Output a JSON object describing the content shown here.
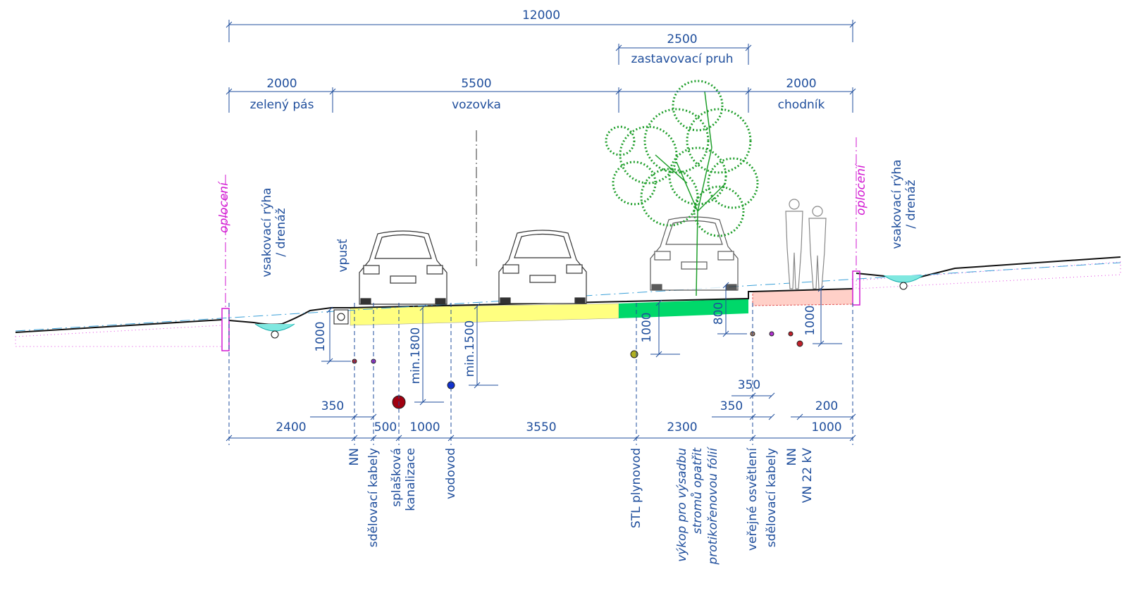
{
  "dimensions": {
    "overall": 12000,
    "parking_lane": 2500,
    "green_strip": 2000,
    "roadway": 5500,
    "sidewalk": 2000,
    "depths": [
      1000,
      "min.1800",
      "min.1500",
      1000,
      800,
      1000
    ],
    "offsets": [
      350,
      2400,
      500,
      1000,
      3550,
      2300,
      350,
      350,
      200,
      1000
    ]
  },
  "zones": {
    "parking_lane": "zastavovací pruh",
    "green_strip": "zelený pás",
    "roadway": "vozovka",
    "sidewalk": "chodník"
  },
  "labels": {
    "fence_left": "oplocení",
    "drain_left": [
      "vsakovací rýha",
      "/ drenáž"
    ],
    "inlet": "vpusť",
    "fence_right": "oplocení",
    "drain_right": [
      "vsakovací rýha",
      "/ drenáž"
    ]
  },
  "utilities": [
    "NN",
    "sdělovací kabely",
    [
      "splašková",
      "kanalizace"
    ],
    "vodovod",
    "STL plynovod",
    [
      "výkop pro výsadbu",
      "stromů opatřit",
      "protikořenovou fólií"
    ],
    "veřejné osvětlení",
    "sdělovací kabely",
    "NN",
    "VN 22 kV"
  ]
}
